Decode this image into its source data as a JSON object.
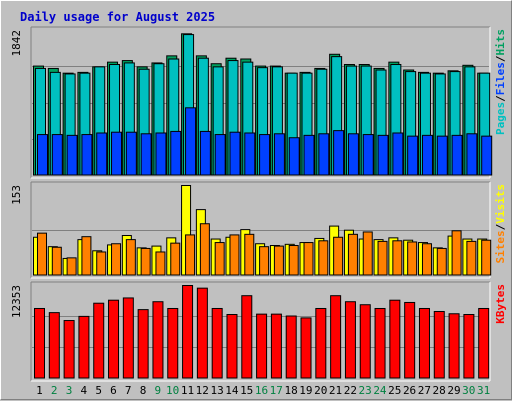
{
  "title": "Daily usage for August 2025",
  "colors": {
    "background": "#c0c0c0",
    "title": "#0000cc",
    "pages": "#00c0c0",
    "files": "#0040ff",
    "hits": "#00a060",
    "visits": "#ffff00",
    "sites": "#ff8000",
    "kbytes": "#ff0000",
    "weekend_day": "#008040",
    "weekday": "#000000"
  },
  "chart_data": [
    {
      "type": "bar",
      "panel": "hits-files-pages",
      "x": [
        1,
        2,
        3,
        4,
        5,
        6,
        7,
        8,
        9,
        10,
        11,
        12,
        13,
        14,
        15,
        16,
        17,
        18,
        19,
        20,
        21,
        22,
        23,
        24,
        25,
        26,
        27,
        28,
        29,
        30,
        31
      ],
      "weekend_days": [
        2,
        3,
        9,
        10,
        16,
        17,
        23,
        24,
        30,
        31
      ],
      "ymax_label": "1842",
      "ylim": [
        0,
        1842
      ],
      "grid": true,
      "legend_labels": [
        "Pages",
        "/",
        "Files",
        "/",
        "Hits"
      ],
      "series": [
        {
          "name": "Hits",
          "values": [
            1390,
            1360,
            1300,
            1310,
            1380,
            1440,
            1460,
            1380,
            1430,
            1520,
            1800,
            1520,
            1420,
            1490,
            1480,
            1390,
            1390,
            1300,
            1310,
            1360,
            1540,
            1410,
            1410,
            1360,
            1440,
            1340,
            1310,
            1300,
            1330,
            1400,
            1300
          ]
        },
        {
          "name": "Files",
          "values": [
            1360,
            1310,
            1290,
            1300,
            1380,
            1410,
            1430,
            1350,
            1420,
            1480,
            1790,
            1490,
            1380,
            1460,
            1440,
            1370,
            1380,
            1300,
            1300,
            1350,
            1510,
            1390,
            1390,
            1340,
            1410,
            1320,
            1300,
            1290,
            1320,
            1380,
            1300
          ]
        },
        {
          "name": "Pages",
          "values": [
            520,
            520,
            510,
            520,
            540,
            550,
            550,
            530,
            540,
            560,
            860,
            560,
            520,
            550,
            540,
            520,
            530,
            480,
            510,
            530,
            570,
            530,
            520,
            510,
            540,
            500,
            510,
            500,
            510,
            530,
            500
          ]
        }
      ]
    },
    {
      "type": "bar",
      "panel": "sites-visits",
      "x": [
        1,
        2,
        3,
        4,
        5,
        6,
        7,
        8,
        9,
        10,
        11,
        12,
        13,
        14,
        15,
        16,
        17,
        18,
        19,
        20,
        21,
        22,
        23,
        24,
        25,
        26,
        27,
        28,
        29,
        30,
        31
      ],
      "ymax_label": "153",
      "ylim": [
        0,
        153
      ],
      "grid": true,
      "legend_labels": [
        "Sites",
        "/",
        "Visits"
      ],
      "series": [
        {
          "name": "Visits",
          "values": [
            65,
            49,
            29,
            61,
            42,
            52,
            68,
            47,
            50,
            64,
            153,
            112,
            62,
            65,
            78,
            54,
            51,
            53,
            56,
            63,
            84,
            77,
            62,
            61,
            64,
            60,
            56,
            47,
            67,
            62,
            62
          ]
        },
        {
          "name": "Sites",
          "values": [
            72,
            48,
            30,
            66,
            40,
            54,
            61,
            46,
            40,
            55,
            69,
            88,
            56,
            69,
            70,
            49,
            50,
            51,
            56,
            59,
            65,
            70,
            74,
            58,
            59,
            57,
            54,
            46,
            76,
            58,
            60
          ]
        }
      ]
    },
    {
      "type": "bar",
      "panel": "kbytes",
      "x": [
        1,
        2,
        3,
        4,
        5,
        6,
        7,
        8,
        9,
        10,
        11,
        12,
        13,
        14,
        15,
        16,
        17,
        18,
        19,
        20,
        21,
        22,
        23,
        24,
        25,
        26,
        27,
        28,
        29,
        30,
        31
      ],
      "ymax_label": "12353",
      "ylim": [
        0,
        12353
      ],
      "grid": true,
      "legend_labels": [
        "KBytes"
      ],
      "series": [
        {
          "name": "KBytes",
          "values": [
            9300,
            8750,
            7700,
            8250,
            10000,
            10400,
            10700,
            9150,
            10200,
            9300,
            12353,
            12000,
            9300,
            8500,
            11000,
            8550,
            8550,
            8300,
            8050,
            9300,
            11000,
            10200,
            9800,
            9300,
            10400,
            10100,
            9300,
            8900,
            8600,
            8500,
            9300
          ]
        }
      ]
    }
  ]
}
